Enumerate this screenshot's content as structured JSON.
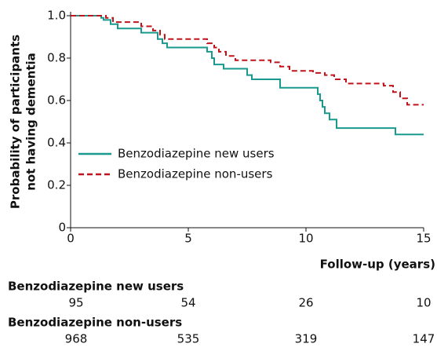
{
  "chart_data": {
    "type": "line",
    "step": true,
    "ylabel": [
      "Probability of participants",
      "not having dementia"
    ],
    "xlabel": "Follow-up (years)",
    "xlim": [
      0,
      15
    ],
    "xticks": [
      0,
      5,
      10,
      15
    ],
    "ylim": [
      0,
      1
    ],
    "yticks": [
      {
        "value": 1,
        "label": "1.0"
      },
      0.8,
      0.6,
      0.4,
      0.2,
      0
    ],
    "legend": "lower left",
    "series": [
      {
        "name": "Benzodiazepine new users",
        "color": "#1a9a8f",
        "dash": false,
        "x": [
          0,
          1.3,
          1.4,
          1.7,
          2.0,
          3.0,
          3.7,
          3.9,
          4.1,
          5.8,
          6.0,
          6.1,
          6.5,
          7.5,
          7.7,
          8.9,
          10.5,
          10.6,
          10.7,
          10.8,
          11.0,
          11.3,
          13.8,
          15
        ],
        "values": [
          1.0,
          0.99,
          0.98,
          0.96,
          0.94,
          0.92,
          0.89,
          0.87,
          0.85,
          0.83,
          0.8,
          0.77,
          0.75,
          0.72,
          0.7,
          0.66,
          0.63,
          0.6,
          0.57,
          0.54,
          0.51,
          0.47,
          0.44,
          0.44
        ]
      },
      {
        "name": "Benzodiazepine non-users",
        "color": "#c0141c",
        "dash": true,
        "x": [
          0,
          1.5,
          1.8,
          3.0,
          3.5,
          3.8,
          4.0,
          5.8,
          6.1,
          6.3,
          6.6,
          7.0,
          8.5,
          8.9,
          9.3,
          10.3,
          10.8,
          11.2,
          11.7,
          13.3,
          13.7,
          14.0,
          14.3,
          15
        ],
        "values": [
          1.0,
          0.99,
          0.97,
          0.95,
          0.93,
          0.91,
          0.89,
          0.87,
          0.85,
          0.83,
          0.81,
          0.79,
          0.78,
          0.76,
          0.74,
          0.73,
          0.72,
          0.7,
          0.68,
          0.67,
          0.64,
          0.61,
          0.58,
          0.58
        ]
      }
    ],
    "risk_table": {
      "rows": [
        {
          "label": "Benzodiazepine new users",
          "values": [
            95,
            54,
            26,
            10
          ]
        },
        {
          "label": "Benzodiazepine non-users",
          "values": [
            968,
            535,
            319,
            147
          ]
        }
      ]
    }
  }
}
